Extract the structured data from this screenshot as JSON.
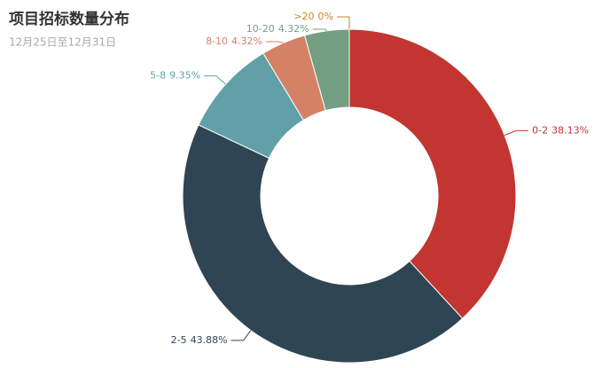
{
  "chart_data": {
    "type": "pie",
    "title": "项目招标数量分布",
    "subtitle": "12月25日至12月31日",
    "categories": [
      "0-2",
      "2-5",
      "5-8",
      "8-10",
      "10-20",
      ">20"
    ],
    "values": [
      38.13,
      43.88,
      9.35,
      4.32,
      4.32,
      0
    ],
    "value_labels": [
      "38.13%",
      "43.88%",
      "9.35%",
      "4.32%",
      "4.32%",
      "0%"
    ],
    "colors": [
      "#c23531",
      "#2f4554",
      "#61a0a8",
      "#d48265",
      "#749f83",
      "#ca8622"
    ]
  }
}
